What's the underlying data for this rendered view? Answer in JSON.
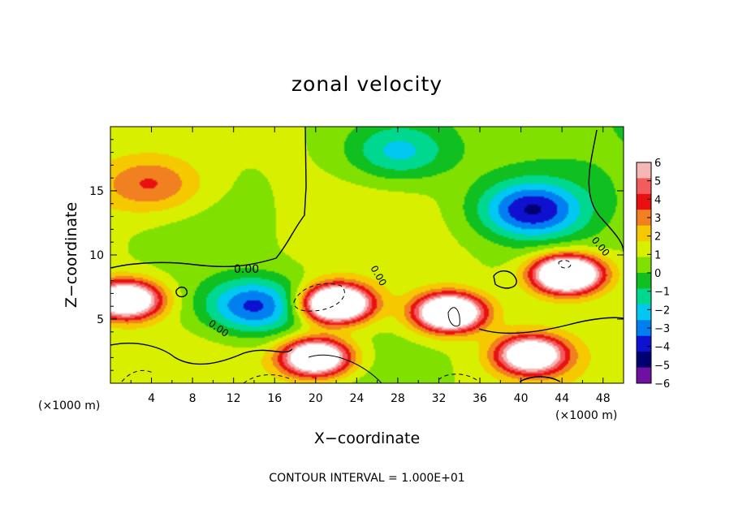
{
  "chart_data": {
    "type": "heatmap",
    "title": "zonal velocity",
    "xlabel": "X−coordinate",
    "ylabel": "Z−coordinate",
    "x_unit_left": "(×1000 m)",
    "x_unit_right": "(×1000 m)",
    "xlim": [
      0,
      50
    ],
    "ylim": [
      0,
      20
    ],
    "x_ticks": [
      4,
      8,
      12,
      16,
      20,
      24,
      28,
      32,
      36,
      40,
      44,
      48
    ],
    "y_ticks": [
      5,
      10,
      15
    ],
    "colorbar": {
      "ticks": [
        "6",
        "5",
        "4",
        "3",
        "2",
        "1",
        "0",
        "−1",
        "−2",
        "−3",
        "−4",
        "−5",
        "−6"
      ],
      "range": [
        -6,
        6
      ],
      "colors": [
        "#f7b6b6",
        "#f25c5c",
        "#e81010",
        "#f08020",
        "#f5c800",
        "#d8f000",
        "#80e000",
        "#10c020",
        "#00d890",
        "#00c8f0",
        "#0080f0",
        "#1010d0",
        "#000070",
        "#7010a0"
      ]
    },
    "contour_label": "0.00",
    "footer": "CONTOUR INTERVAL = 1.000E+01",
    "features": [
      {
        "type": "jet_core",
        "sign": "positive",
        "x": 1.5,
        "z": 6.5,
        "peak": 10
      },
      {
        "type": "jet_core",
        "sign": "positive",
        "x": 22,
        "z": 6.2,
        "peak": 12
      },
      {
        "type": "jet_core",
        "sign": "positive",
        "x": 33,
        "z": 5.5,
        "peak": 11
      },
      {
        "type": "jet_core",
        "sign": "positive",
        "x": 44.5,
        "z": 8.5,
        "peak": 12
      },
      {
        "type": "jet_core",
        "sign": "positive",
        "x": 20,
        "z": 2.0,
        "peak": 10
      },
      {
        "type": "jet_core",
        "sign": "positive",
        "x": 41,
        "z": 2.2,
        "peak": 9
      },
      {
        "type": "trough",
        "sign": "negative",
        "x": 14,
        "z": 6.0,
        "peak": -5
      },
      {
        "type": "trough",
        "sign": "negative",
        "x": 41,
        "z": 13.5,
        "peak": -5
      },
      {
        "type": "trough",
        "sign": "negative",
        "x": 28,
        "z": 18.0,
        "peak": -3
      },
      {
        "type": "ridge",
        "sign": "positive",
        "x": 4,
        "z": 15.5,
        "peak": 3
      }
    ]
  }
}
